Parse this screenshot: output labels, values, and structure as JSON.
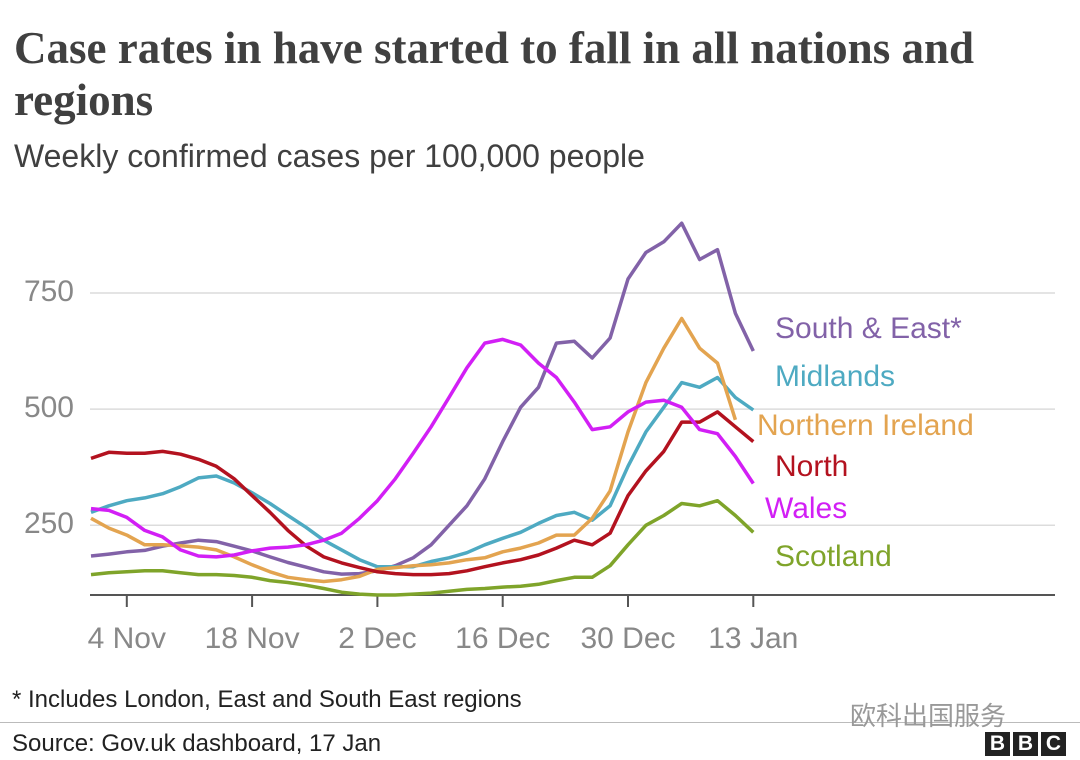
{
  "chart_data": {
    "type": "line",
    "title": "Case rates in have started to fall in all nations and regions",
    "subtitle": "Weekly confirmed cases per 100,000 people",
    "footnote": "* Includes London, East and South East regions",
    "source": "Source: Gov.uk dashboard, 17 Jan",
    "watermark": "欧科出国服务",
    "logo": [
      "B",
      "B",
      "C"
    ],
    "categories": [
      null,
      null,
      "4 Nov",
      null,
      null,
      null,
      null,
      null,
      null,
      "18 Nov",
      null,
      null,
      null,
      null,
      null,
      null,
      "2 Dec",
      null,
      null,
      null,
      null,
      null,
      null,
      "16 Dec",
      null,
      null,
      null,
      null,
      null,
      null,
      "30 Dec",
      null,
      null,
      null,
      null,
      null,
      null,
      "13 Jan"
    ],
    "ylim": [
      100,
      950
    ],
    "yticks": [
      250,
      500,
      750
    ],
    "grid": true,
    "series": [
      {
        "name": "South & East*",
        "color": "#8262a8",
        "values": [
          184,
          188,
          193,
          196,
          205,
          212,
          218,
          215,
          205,
          195,
          182,
          170,
          160,
          150,
          145,
          146,
          152,
          163,
          180,
          208,
          250,
          292,
          350,
          430,
          504,
          547,
          642,
          646,
          610,
          653,
          780,
          837,
          860,
          900,
          822,
          843,
          706,
          625
        ]
      },
      {
        "name": "Midlands",
        "color": "#4eaac2",
        "values": [
          278,
          292,
          303,
          309,
          318,
          333,
          352,
          356,
          341,
          320,
          297,
          271,
          246,
          218,
          197,
          176,
          161,
          161,
          161,
          172,
          180,
          191,
          208,
          222,
          235,
          254,
          271,
          278,
          261,
          292,
          377,
          451,
          504,
          557,
          547,
          568,
          525,
          498
        ]
      },
      {
        "name": "Northern Ireland",
        "color": "#e3a450",
        "values": [
          265,
          244,
          229,
          208,
          208,
          206,
          203,
          197,
          182,
          165,
          150,
          138,
          133,
          129,
          133,
          140,
          155,
          159,
          163,
          165,
          169,
          176,
          180,
          193,
          201,
          212,
          229,
          229,
          265,
          324,
          451,
          557,
          631,
          695,
          631,
          599,
          477,
          null
        ]
      },
      {
        "name": "North",
        "color": "#b3121f",
        "values": [
          394,
          407,
          405,
          405,
          409,
          403,
          392,
          377,
          350,
          314,
          278,
          239,
          206,
          182,
          169,
          159,
          150,
          146,
          144,
          144,
          146,
          152,
          161,
          169,
          176,
          186,
          201,
          218,
          208,
          233,
          314,
          367,
          409,
          472,
          472,
          494,
          462,
          430
        ]
      },
      {
        "name": "Wales",
        "color": "#d21ff5",
        "values": [
          286,
          282,
          267,
          239,
          225,
          197,
          184,
          182,
          186,
          195,
          201,
          203,
          208,
          218,
          233,
          265,
          303,
          350,
          405,
          462,
          525,
          589,
          642,
          650,
          638,
          599,
          568,
          515,
          456,
          462,
          494,
          515,
          519,
          504,
          456,
          447,
          398,
          340
        ]
      },
      {
        "name": "Scotland",
        "color": "#7fa42a",
        "values": [
          144,
          148,
          150,
          152,
          152,
          148,
          144,
          144,
          142,
          138,
          131,
          127,
          121,
          114,
          106,
          102,
          100,
          100,
          102,
          104,
          108,
          112,
          114,
          117,
          119,
          123,
          131,
          138,
          138,
          163,
          208,
          250,
          271,
          297,
          292,
          303,
          271,
          235
        ]
      }
    ]
  }
}
